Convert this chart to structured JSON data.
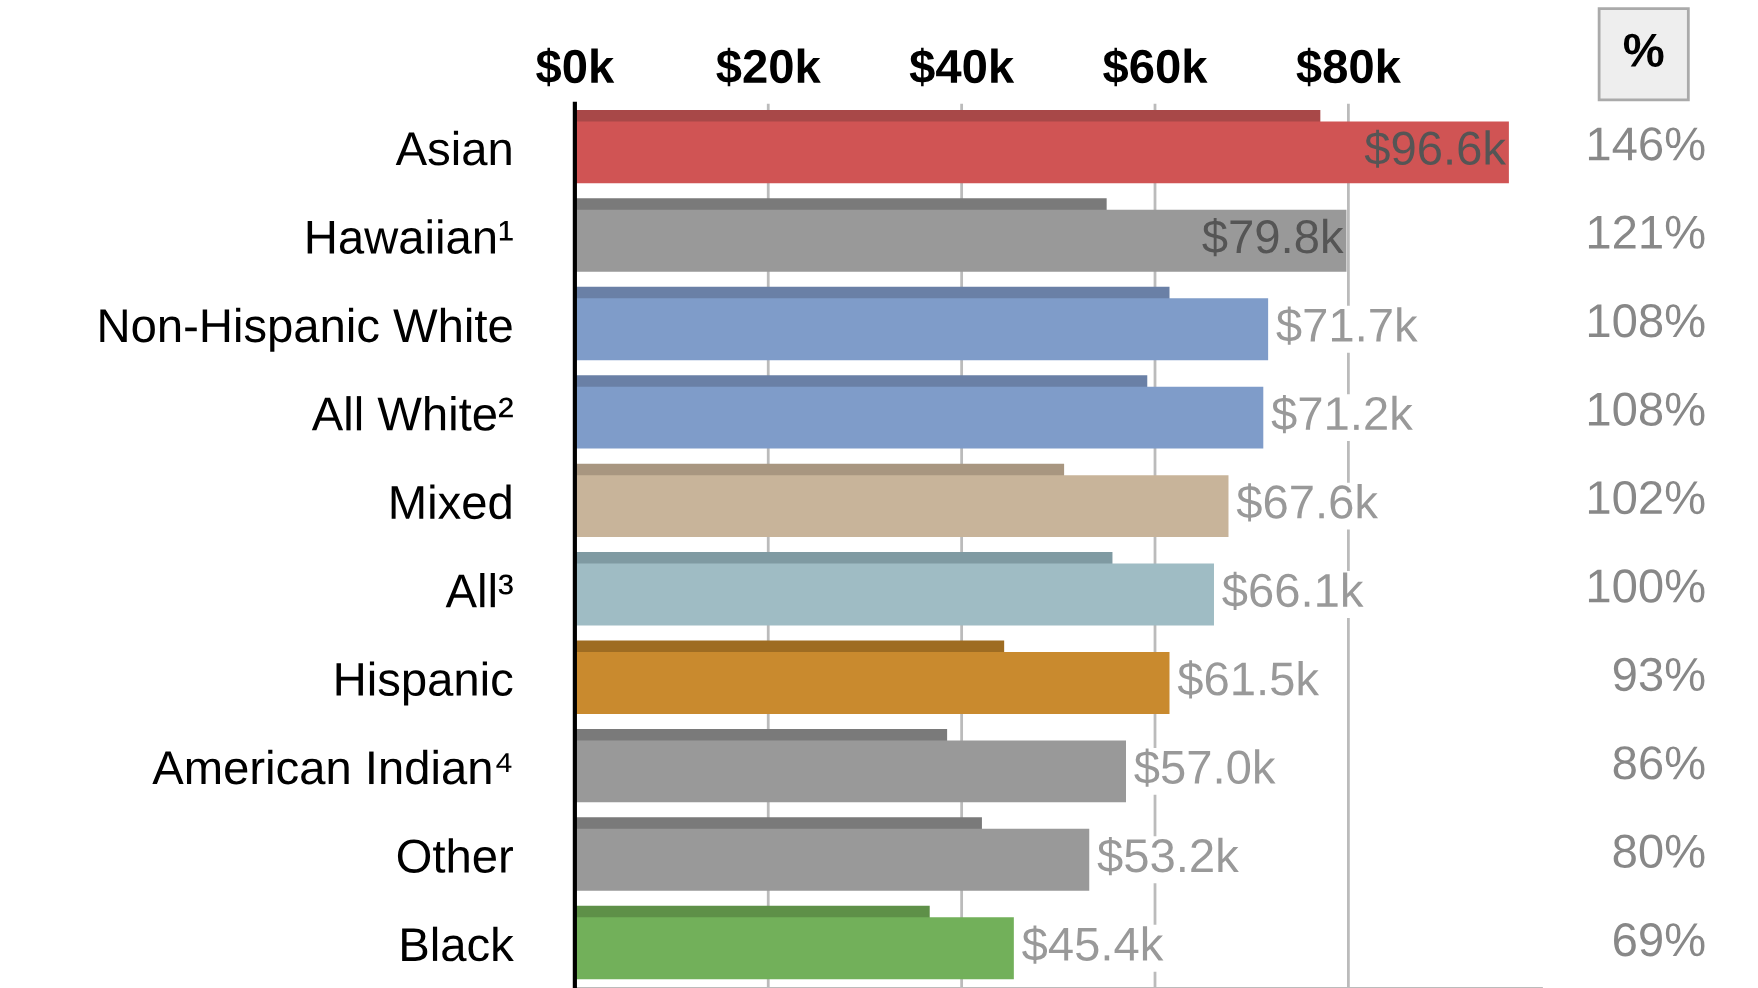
{
  "chart_data": {
    "type": "bar",
    "orientation": "horizontal",
    "categories": [
      "Asian",
      "Hawaiian¹",
      "Non-Hispanic White",
      "All White²",
      "Mixed",
      "All³",
      "Hispanic",
      "American Indian⁴",
      "Other",
      "Black"
    ],
    "series": [
      {
        "colors": [
          "#a84848",
          "#7a7a7a",
          "#6a80a6",
          "#6a80a6",
          "#a89680",
          "#7f9aa2",
          "#9e6c22",
          "#7a7a7a",
          "#7a7a7a",
          "#5e9048"
        ],
        "values": [
          77.1,
          55.0,
          61.5,
          59.2,
          50.6,
          55.6,
          44.4,
          38.5,
          42.1,
          36.7
        ]
      },
      {
        "colors": [
          "#d05454",
          "#999999",
          "#7f9cc9",
          "#7f9cc9",
          "#c8b49a",
          "#9fbcc4",
          "#c98a2e",
          "#999999",
          "#999999",
          "#72b05a"
        ],
        "values": [
          96.6,
          79.8,
          71.7,
          71.2,
          67.6,
          66.1,
          61.5,
          57.0,
          53.2,
          45.4
        ],
        "value_labels": [
          "$96.6k",
          "$79.8k",
          "$71.7k",
          "$71.2k",
          "$67.6k",
          "$66.1k",
          "$61.5k",
          "$57.0k",
          "$53.2k",
          "$45.4k"
        ]
      }
    ],
    "xlim": [
      0,
      100
    ],
    "xticks": [
      {
        "value": 0,
        "label": "$0k"
      },
      {
        "value": 20,
        "label": "$20k"
      },
      {
        "value": 40,
        "label": "$40k"
      },
      {
        "value": 60,
        "label": "$60k"
      },
      {
        "value": 80,
        "label": "$80k"
      }
    ],
    "grid": "x",
    "legend": false,
    "annotations": [
      "%",
      "146%",
      "121%",
      "108%",
      "108%",
      "102%",
      "100%",
      "93%",
      "86%",
      "80%",
      "69%"
    ]
  }
}
